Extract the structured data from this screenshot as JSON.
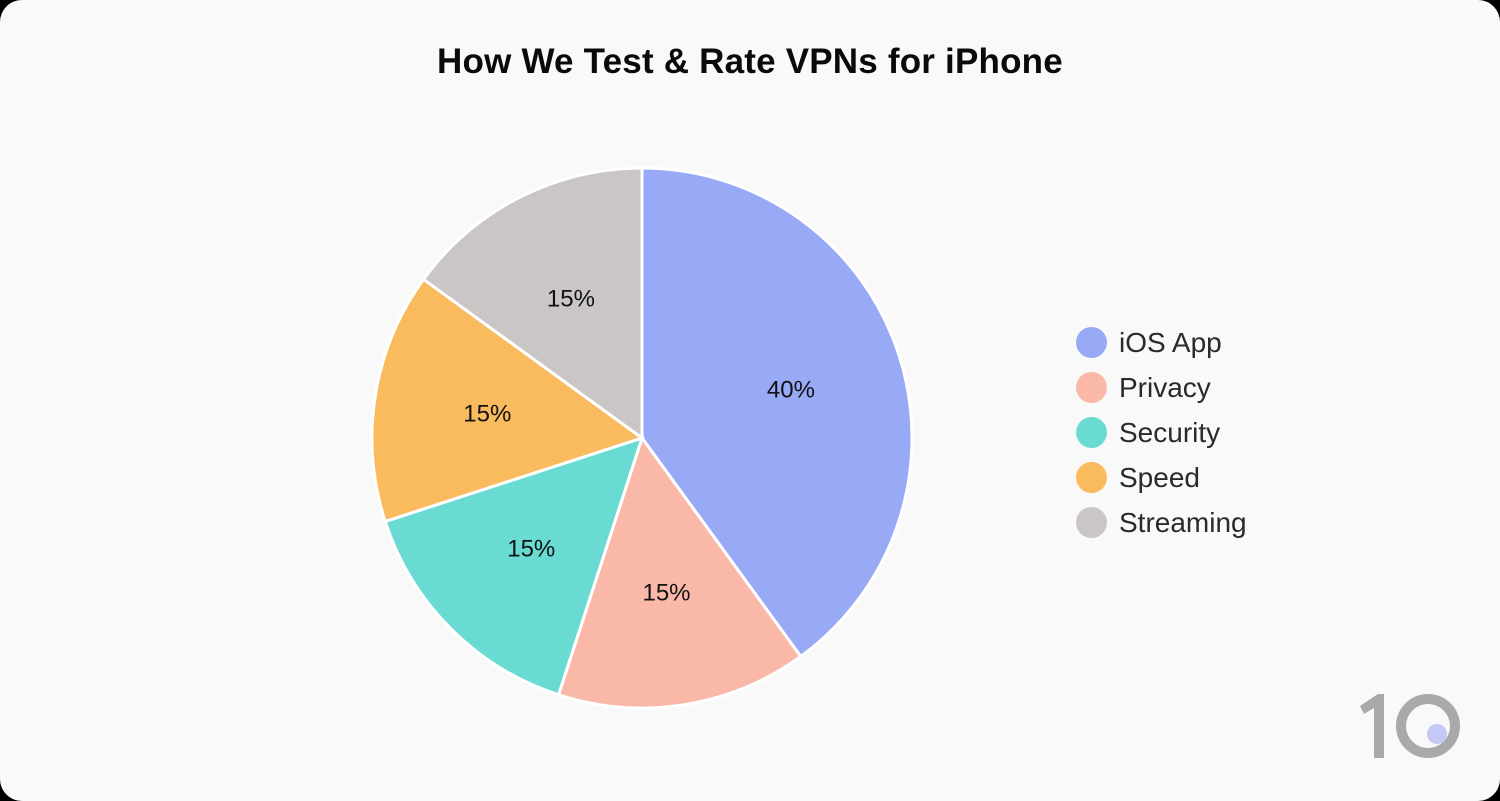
{
  "chart_data": {
    "type": "pie",
    "title": "How We Test & Rate VPNs for iPhone",
    "categories": [
      "iOS App",
      "Privacy",
      "Security",
      "Speed",
      "Streaming"
    ],
    "values": [
      40,
      15,
      15,
      15,
      15
    ],
    "labels": [
      "40%",
      "15%",
      "15%",
      "15%",
      "15%"
    ],
    "colors": [
      "#98aaf6",
      "#f9b8a8",
      "#6adbd3",
      "#f9bb5e",
      "#c9c6c5"
    ],
    "start_angle": "12 o'clock",
    "direction": "clockwise",
    "legend_position": "right"
  },
  "title": "How We Test & Rate VPNs for iPhone",
  "legend": [
    {
      "label": "iOS App",
      "color": "#98aaf6"
    },
    {
      "label": "Privacy",
      "color": "#f9b8a8"
    },
    {
      "label": "Security",
      "color": "#6adbd3"
    },
    {
      "label": "Speed",
      "color": "#f9bb5e"
    },
    {
      "label": "Streaming",
      "color": "#c9c6c5"
    }
  ],
  "logo": {
    "text": "10",
    "dot_color": "#c5c8f4",
    "color": "#a9a9a9"
  }
}
